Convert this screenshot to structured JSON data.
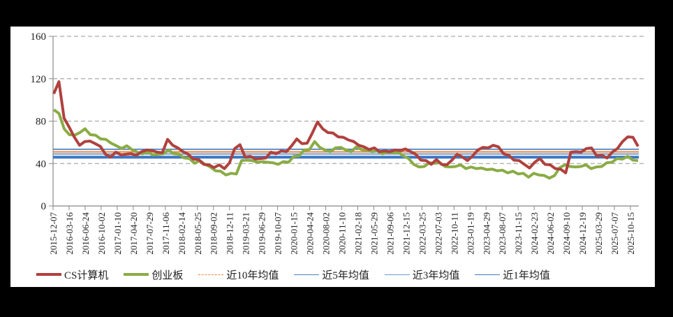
{
  "chart_data": {
    "type": "line",
    "title": "",
    "xlabel": "",
    "ylabel": "",
    "ylim": [
      0,
      160
    ],
    "yticks": [
      0,
      40,
      80,
      120,
      160
    ],
    "grid": "horizontal dashed",
    "legend_position": "bottom",
    "x_tick_labels": [
      "2015-12-07",
      "2016-03-16",
      "2016-06-24",
      "2016-10-02",
      "2017-01-10",
      "2017-04-20",
      "2017-07-29",
      "2017-11-06",
      "2018-02-14",
      "2018-05-25",
      "2018-09-02",
      "2018-12-11",
      "2019-03-21",
      "2019-06-29",
      "2019-10-07",
      "2020-01-15",
      "2020-04-24",
      "2020-08-02",
      "2020-11-10",
      "2021-02-18",
      "2021-05-29",
      "2021-09-06",
      "2021-12-15",
      "2022-03-25",
      "2022-07-03",
      "2022-10-11",
      "2023-01-19",
      "2023-04-29",
      "2023-08-07",
      "2023-11-15",
      "2024-02-23",
      "2024-06-02",
      "2024-09-10",
      "2024-12-19",
      "2025-03-29",
      "2025-07-07",
      "2025-10-15"
    ],
    "series": [
      {
        "name": "CS计算机",
        "color": "#b0413e",
        "style": "solid-thick",
        "values": [
          105,
          118,
          82,
          75,
          64,
          58,
          60,
          62,
          58,
          57,
          48,
          47,
          50,
          49,
          48,
          50,
          47,
          52,
          52,
          53,
          50,
          51,
          62,
          58,
          54,
          52,
          48,
          45,
          43,
          40,
          38,
          37,
          38,
          36,
          40,
          55,
          57,
          47,
          46,
          45,
          44,
          46,
          50,
          50,
          51,
          52,
          56,
          64,
          58,
          60,
          68,
          80,
          72,
          70,
          68,
          66,
          64,
          63,
          60,
          58,
          55,
          54,
          54,
          52,
          51,
          52,
          52,
          53,
          53,
          52,
          48,
          44,
          42,
          40,
          43,
          40,
          38,
          44,
          48,
          47,
          42,
          48,
          52,
          56,
          54,
          58,
          55,
          50,
          47,
          44,
          42,
          40,
          35,
          42,
          44,
          40,
          38,
          36,
          34,
          32,
          50,
          52,
          50,
          55,
          54,
          48,
          47,
          46,
          50,
          55,
          60,
          66,
          64,
          57
        ]
      },
      {
        "name": "创业板",
        "color": "#8aac45",
        "style": "solid-thick",
        "values": [
          90,
          88,
          72,
          68,
          66,
          70,
          72,
          68,
          66,
          64,
          62,
          60,
          56,
          55,
          56,
          54,
          50,
          50,
          50,
          49,
          48,
          50,
          52,
          50,
          48,
          46,
          44,
          41,
          42,
          40,
          36,
          34,
          32,
          30,
          30,
          31,
          42,
          44,
          42,
          42,
          41,
          42,
          40,
          40,
          41,
          42,
          46,
          48,
          52,
          54,
          60,
          56,
          52,
          52,
          54,
          56,
          52,
          52,
          55,
          54,
          52,
          52,
          51,
          50,
          50,
          51,
          50,
          48,
          44,
          40,
          36,
          38,
          40,
          41,
          40,
          38,
          36,
          38,
          38,
          36,
          36,
          36,
          35,
          35,
          34,
          34,
          33,
          32,
          32,
          31,
          30,
          28,
          30,
          30,
          28,
          27,
          28,
          37,
          38,
          38,
          36,
          38,
          38,
          36,
          36,
          38,
          40,
          42,
          44,
          45,
          46,
          44,
          42
        ]
      },
      {
        "name": "近10年均值",
        "color": "#e8883a",
        "style": "dashed",
        "value": 51
      },
      {
        "name": "近5年均值",
        "color": "#4a7fc1",
        "style": "solid-thin",
        "value": 53.5
      },
      {
        "name": "近3年均值",
        "color": "#6a98d0",
        "style": "solid-thin",
        "value": 49
      },
      {
        "name": "近1年均值",
        "color": "#3e78c4",
        "style": "solid-thick",
        "value": 46
      }
    ]
  },
  "legend": {
    "items": [
      {
        "label": "CS计算机",
        "color": "#b0413e",
        "style": "thick"
      },
      {
        "label": "创业板",
        "color": "#8aac45",
        "style": "thick"
      },
      {
        "label": "近10年均值",
        "color": "#e8883a",
        "style": "dashed"
      },
      {
        "label": "近5年均值",
        "color": "#4a7fc1",
        "style": "thin"
      },
      {
        "label": "近3年均值",
        "color": "#6a98d0",
        "style": "thin"
      },
      {
        "label": "近1年均值",
        "color": "#3e78c4",
        "style": "thin"
      }
    ]
  },
  "axis": {
    "y_labels": [
      "160",
      "120",
      "80",
      "40",
      "0"
    ]
  }
}
